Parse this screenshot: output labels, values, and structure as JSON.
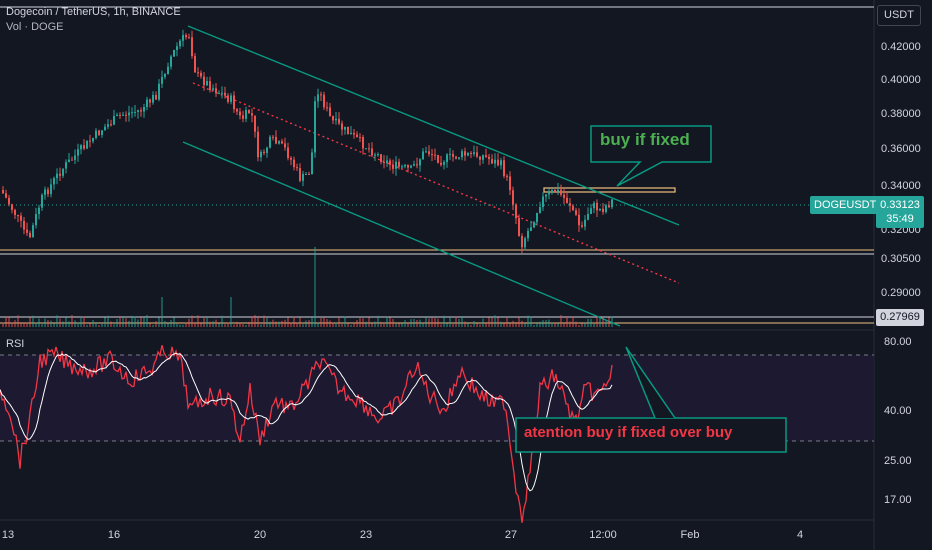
{
  "header": {
    "symbol_line": "Dogecoin / TetherUS, 1h, BINANCE",
    "volume_line": "Vol · DOGE"
  },
  "price_axis": {
    "currency": "USDT",
    "ticks": [
      "0.42000",
      "0.40000",
      "0.38000",
      "0.36000",
      "0.34000",
      "0.32000",
      "0.30500",
      "0.29000"
    ]
  },
  "price_tags": {
    "symbol": "DOGEUSDT",
    "last_price": "0.33123",
    "countdown": "35:49",
    "level": "0.27969"
  },
  "rsi": {
    "label": "RSI",
    "ticks": [
      "80.00",
      "40.00",
      "25.00",
      "17.00"
    ]
  },
  "time_axis": {
    "ticks": [
      "13",
      "16",
      "20",
      "23",
      "27",
      "12:00",
      "Feb",
      "4"
    ]
  },
  "annotations": {
    "callout_top": "buy if fixed",
    "callout_bottom": "atention buy if fixed over buy"
  },
  "colors": {
    "background": "#131722",
    "up": "#26a69a",
    "down": "#ef5350",
    "channel": "#089981",
    "trend_dotted": "#f23645",
    "support": "#f0c080",
    "rsi_line": "#f23645",
    "rsi_ma": "#ffffff"
  }
}
